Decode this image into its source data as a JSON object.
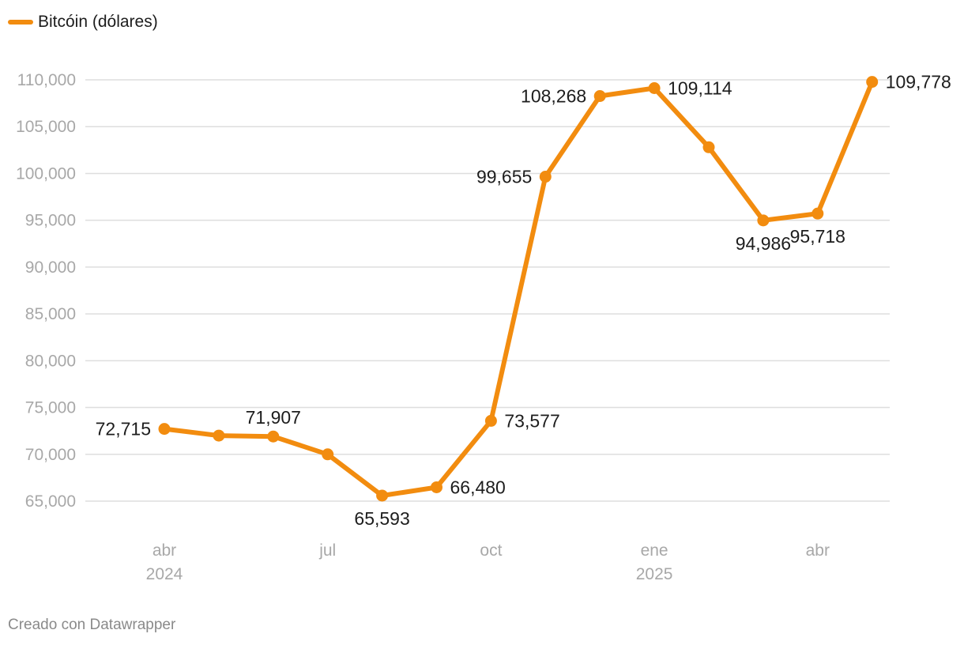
{
  "legend": {
    "label": "Bitcóin (dólares)"
  },
  "footer": {
    "credit": "Creado con Datawrapper"
  },
  "colors": {
    "series": "#f28c0f",
    "grid": "#dedede",
    "axis_text": "#a8a8a8",
    "label_text": "#1d1d1d"
  },
  "chart_data": {
    "type": "line",
    "title": "",
    "xlabel": "",
    "ylabel": "",
    "ylim": [
      65000,
      110000
    ],
    "grid": true,
    "legend_position": "top-left",
    "yticks": [
      65000,
      70000,
      75000,
      80000,
      85000,
      90000,
      95000,
      100000,
      105000,
      110000
    ],
    "y_tick_labels": [
      "65,000",
      "70,000",
      "75,000",
      "80,000",
      "85,000",
      "90,000",
      "95,000",
      "100,000",
      "105,000",
      "110,000"
    ],
    "x_ticks": [
      {
        "index": 0,
        "label": "abr",
        "sublabel": "2024"
      },
      {
        "index": 3,
        "label": "jul",
        "sublabel": ""
      },
      {
        "index": 6,
        "label": "oct",
        "sublabel": ""
      },
      {
        "index": 9,
        "label": "ene",
        "sublabel": "2025"
      },
      {
        "index": 12,
        "label": "abr",
        "sublabel": ""
      }
    ],
    "series": [
      {
        "name": "Bitcóin (dólares)",
        "x": [
          "2024-04",
          "2024-05",
          "2024-06",
          "2024-07",
          "2024-08",
          "2024-09",
          "2024-10",
          "2024-11",
          "2024-12",
          "2025-01",
          "2025-02",
          "2025-03",
          "2025-04",
          "2025-05"
        ],
        "values": [
          72715,
          72000,
          71907,
          70000,
          65593,
          66480,
          73577,
          99655,
          108268,
          109114,
          102800,
          94986,
          95718,
          109778
        ]
      }
    ],
    "data_labels": [
      {
        "index": 0,
        "text": "72,715",
        "pos": "left"
      },
      {
        "index": 2,
        "text": "71,907",
        "pos": "above"
      },
      {
        "index": 4,
        "text": "65,593",
        "pos": "below"
      },
      {
        "index": 5,
        "text": "66,480",
        "pos": "right"
      },
      {
        "index": 6,
        "text": "73,577",
        "pos": "right"
      },
      {
        "index": 7,
        "text": "99,655",
        "pos": "left"
      },
      {
        "index": 8,
        "text": "108,268",
        "pos": "left"
      },
      {
        "index": 9,
        "text": "109,114",
        "pos": "right"
      },
      {
        "index": 11,
        "text": "94,986",
        "pos": "below"
      },
      {
        "index": 12,
        "text": "95,718",
        "pos": "below"
      },
      {
        "index": 13,
        "text": "109,778",
        "pos": "right"
      }
    ]
  }
}
